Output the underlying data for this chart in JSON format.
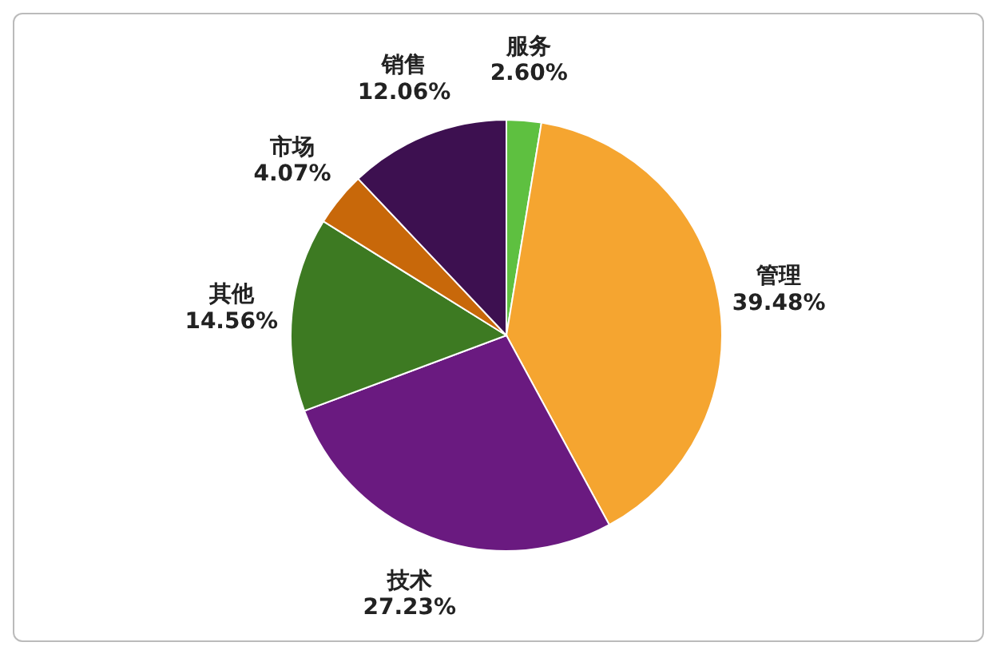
{
  "chart_data": {
    "type": "pie",
    "categories": [
      "服务",
      "管理",
      "技术",
      "其他",
      "市场",
      "销售"
    ],
    "values": [
      2.6,
      39.48,
      27.23,
      14.56,
      4.07,
      12.06
    ],
    "value_labels": [
      "2.60%",
      "39.48%",
      "27.23%",
      "14.56%",
      "4.07%",
      "12.06%"
    ],
    "colors": [
      "#5ec040",
      "#f5a530",
      "#6a1a80",
      "#3d7a22",
      "#c8680a",
      "#3d1050"
    ]
  }
}
